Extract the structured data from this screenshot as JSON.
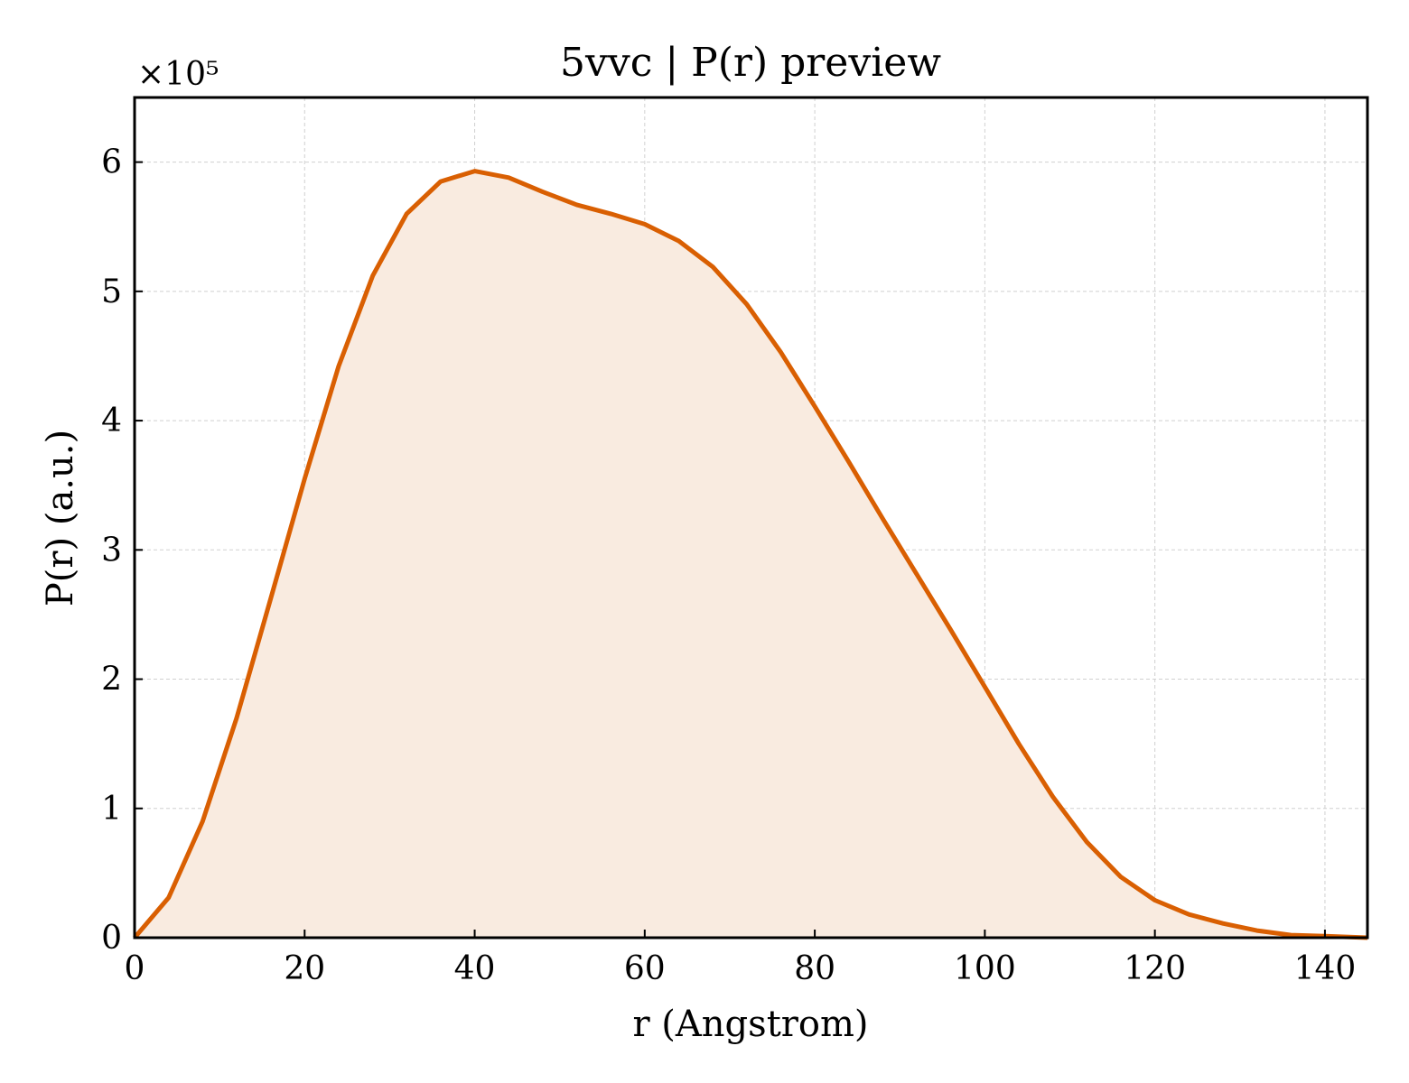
{
  "chart_data": {
    "type": "area",
    "title": "5vvc | P(r) preview",
    "xlabel": "r (Angstrom)",
    "ylabel": "P(r) (a.u.)",
    "y_multiplier_label": "×10⁵",
    "xlim": [
      0,
      145
    ],
    "ylim": [
      0,
      6.5
    ],
    "x_ticks": [
      0,
      20,
      40,
      60,
      80,
      100,
      120,
      140
    ],
    "y_ticks": [
      0,
      1,
      2,
      3,
      4,
      5,
      6
    ],
    "grid": true,
    "line_color": "#d95f02",
    "fill_color": "#f9ebe0",
    "series": [
      {
        "x": [
          0,
          4,
          8,
          12,
          16,
          20,
          24,
          28,
          32,
          36,
          40,
          44,
          48,
          52,
          56,
          60,
          64,
          68,
          72,
          76,
          80,
          84,
          88,
          92,
          96,
          100,
          104,
          108,
          112,
          116,
          120,
          124,
          128,
          132,
          136,
          140,
          145
        ],
        "y": [
          0,
          0.31,
          0.9,
          1.7,
          2.62,
          3.55,
          4.42,
          5.12,
          5.6,
          5.85,
          5.93,
          5.88,
          5.77,
          5.67,
          5.6,
          5.52,
          5.39,
          5.19,
          4.9,
          4.53,
          4.11,
          3.68,
          3.24,
          2.81,
          2.38,
          1.94,
          1.5,
          1.09,
          0.74,
          0.47,
          0.29,
          0.18,
          0.11,
          0.055,
          0.02,
          0.012,
          0
        ]
      }
    ]
  }
}
